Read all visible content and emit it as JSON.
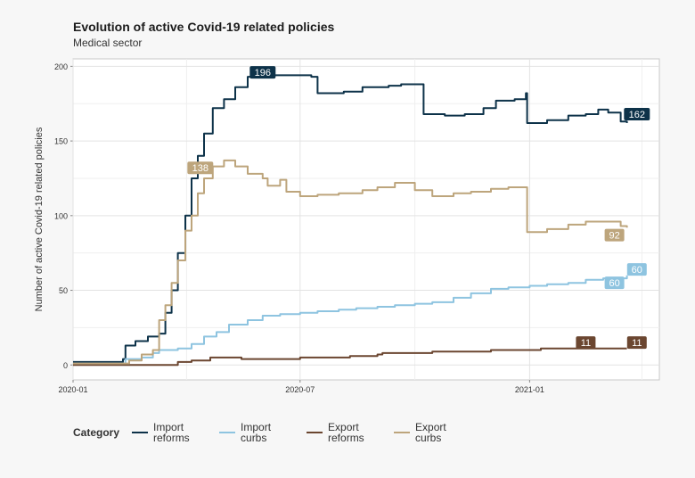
{
  "chart_data": {
    "type": "line",
    "title": "Evolution of active Covid-19 related policies",
    "subtitle": "Medical sector",
    "xlabel": "",
    "ylabel": "Number of active Covid-19 related policies",
    "x_ticks": [
      "2020-01",
      "2020-07",
      "2021-01"
    ],
    "y_ticks": [
      0,
      50,
      100,
      150,
      200
    ],
    "xlim": [
      "2020-01-01",
      "2021-04-15"
    ],
    "ylim": [
      -10,
      205
    ],
    "grid": true,
    "legend": {
      "title": "Category",
      "position": "bottom-left"
    },
    "series": [
      {
        "name": "Import\nreforms",
        "color": "#0d3249",
        "points": [
          [
            "2020-01-01",
            2
          ],
          [
            "2020-01-25",
            2
          ],
          [
            "2020-02-10",
            4
          ],
          [
            "2020-02-12",
            13
          ],
          [
            "2020-02-20",
            16
          ],
          [
            "2020-03-01",
            19
          ],
          [
            "2020-03-10",
            21
          ],
          [
            "2020-03-15",
            35
          ],
          [
            "2020-03-20",
            50
          ],
          [
            "2020-03-25",
            75
          ],
          [
            "2020-03-31",
            100
          ],
          [
            "2020-04-05",
            125
          ],
          [
            "2020-04-10",
            140
          ],
          [
            "2020-04-15",
            155
          ],
          [
            "2020-04-22",
            172
          ],
          [
            "2020-05-01",
            178
          ],
          [
            "2020-05-10",
            186
          ],
          [
            "2020-05-20",
            193
          ],
          [
            "2020-05-31",
            196
          ],
          [
            "2020-06-10",
            194
          ],
          [
            "2020-06-25",
            194
          ],
          [
            "2020-07-10",
            193
          ],
          [
            "2020-07-15",
            182
          ],
          [
            "2020-07-25",
            182
          ],
          [
            "2020-08-05",
            183
          ],
          [
            "2020-08-20",
            186
          ],
          [
            "2020-09-10",
            187
          ],
          [
            "2020-09-20",
            188
          ],
          [
            "2020-10-05",
            188
          ],
          [
            "2020-10-08",
            168
          ],
          [
            "2020-10-25",
            167
          ],
          [
            "2020-11-10",
            168
          ],
          [
            "2020-11-25",
            172
          ],
          [
            "2020-12-05",
            177
          ],
          [
            "2020-12-20",
            178
          ],
          [
            "2020-12-29",
            182
          ],
          [
            "2020-12-30",
            162
          ],
          [
            "2021-01-15",
            164
          ],
          [
            "2021-02-01",
            167
          ],
          [
            "2021-02-15",
            168
          ],
          [
            "2021-02-25",
            171
          ],
          [
            "2021-03-05",
            169
          ],
          [
            "2021-03-15",
            163
          ],
          [
            "2021-03-20",
            162
          ]
        ],
        "end_label": "162",
        "peak_label": "196"
      },
      {
        "name": "Import\ncurbs",
        "color": "#8ec4e0",
        "points": [
          [
            "2020-01-01",
            1
          ],
          [
            "2020-02-10",
            1
          ],
          [
            "2020-02-12",
            4
          ],
          [
            "2020-02-25",
            5
          ],
          [
            "2020-03-05",
            8
          ],
          [
            "2020-03-10",
            10
          ],
          [
            "2020-03-25",
            11
          ],
          [
            "2020-04-05",
            14
          ],
          [
            "2020-04-15",
            19
          ],
          [
            "2020-04-25",
            22
          ],
          [
            "2020-05-05",
            27
          ],
          [
            "2020-05-20",
            30
          ],
          [
            "2020-06-01",
            33
          ],
          [
            "2020-06-15",
            34
          ],
          [
            "2020-07-01",
            35
          ],
          [
            "2020-07-15",
            36
          ],
          [
            "2020-08-01",
            37
          ],
          [
            "2020-08-15",
            38
          ],
          [
            "2020-09-01",
            39
          ],
          [
            "2020-09-15",
            40
          ],
          [
            "2020-10-01",
            41
          ],
          [
            "2020-10-15",
            42
          ],
          [
            "2020-11-01",
            45
          ],
          [
            "2020-11-15",
            48
          ],
          [
            "2020-12-01",
            51
          ],
          [
            "2020-12-15",
            52
          ],
          [
            "2021-01-01",
            53
          ],
          [
            "2021-01-15",
            54
          ],
          [
            "2021-02-01",
            55
          ],
          [
            "2021-02-15",
            57
          ],
          [
            "2021-03-01",
            58
          ],
          [
            "2021-03-20",
            60
          ]
        ],
        "end_label": "60"
      },
      {
        "name": "Export\nreforms",
        "color": "#6b4630",
        "points": [
          [
            "2020-01-01",
            0
          ],
          [
            "2020-03-15",
            0
          ],
          [
            "2020-03-25",
            2
          ],
          [
            "2020-04-05",
            3
          ],
          [
            "2020-04-20",
            5
          ],
          [
            "2020-05-10",
            5
          ],
          [
            "2020-05-15",
            4
          ],
          [
            "2020-06-15",
            4
          ],
          [
            "2020-07-01",
            5
          ],
          [
            "2020-07-25",
            5
          ],
          [
            "2020-08-10",
            6
          ],
          [
            "2020-09-01",
            7
          ],
          [
            "2020-09-05",
            8
          ],
          [
            "2020-10-01",
            8
          ],
          [
            "2020-10-15",
            9
          ],
          [
            "2020-11-15",
            9
          ],
          [
            "2020-12-01",
            10
          ],
          [
            "2021-01-01",
            10
          ],
          [
            "2021-01-10",
            11
          ],
          [
            "2021-03-20",
            11
          ]
        ],
        "end_label": "11"
      },
      {
        "name": "Export\ncurbs",
        "color": "#bda57c",
        "points": [
          [
            "2020-01-01",
            1
          ],
          [
            "2020-02-10",
            1
          ],
          [
            "2020-02-15",
            3
          ],
          [
            "2020-02-25",
            7
          ],
          [
            "2020-03-05",
            10
          ],
          [
            "2020-03-10",
            30
          ],
          [
            "2020-03-15",
            40
          ],
          [
            "2020-03-20",
            55
          ],
          [
            "2020-03-25",
            70
          ],
          [
            "2020-03-31",
            90
          ],
          [
            "2020-04-05",
            100
          ],
          [
            "2020-04-10",
            115
          ],
          [
            "2020-04-15",
            125
          ],
          [
            "2020-04-22",
            133
          ],
          [
            "2020-05-01",
            137
          ],
          [
            "2020-05-10",
            133
          ],
          [
            "2020-05-20",
            128
          ],
          [
            "2020-06-01",
            125
          ],
          [
            "2020-06-05",
            120
          ],
          [
            "2020-06-15",
            124
          ],
          [
            "2020-06-20",
            116
          ],
          [
            "2020-07-01",
            113
          ],
          [
            "2020-07-15",
            114
          ],
          [
            "2020-08-01",
            115
          ],
          [
            "2020-08-20",
            117
          ],
          [
            "2020-09-01",
            119
          ],
          [
            "2020-09-15",
            122
          ],
          [
            "2020-10-01",
            117
          ],
          [
            "2020-10-15",
            113
          ],
          [
            "2020-11-01",
            115
          ],
          [
            "2020-11-15",
            116
          ],
          [
            "2020-12-01",
            118
          ],
          [
            "2020-12-15",
            119
          ],
          [
            "2020-12-29",
            119
          ],
          [
            "2020-12-30",
            89
          ],
          [
            "2021-01-15",
            91
          ],
          [
            "2021-02-01",
            94
          ],
          [
            "2021-02-15",
            96
          ],
          [
            "2021-03-05",
            96
          ],
          [
            "2021-03-15",
            93
          ],
          [
            "2021-03-20",
            92
          ]
        ],
        "end_label": "92",
        "peak_label": "138"
      }
    ],
    "annotations": [
      {
        "series": "Import\nreforms",
        "text": "196",
        "at": [
          "2020-06-01",
          196
        ]
      },
      {
        "series": "Import\nreforms",
        "text": "162",
        "at": [
          "2021-03-28",
          168
        ]
      },
      {
        "series": "Export\ncurbs",
        "text": "138",
        "at": [
          "2020-04-12",
          132
        ]
      },
      {
        "series": "Export\ncurbs",
        "text": "92",
        "at": [
          "2021-03-10",
          87
        ]
      },
      {
        "series": "Import\ncurbs",
        "text": "60",
        "at": [
          "2021-03-28",
          64
        ]
      },
      {
        "series": "Import\ncurbs",
        "text": "60",
        "at": [
          "2021-03-10",
          55
        ]
      },
      {
        "series": "Export\nreforms",
        "text": "11",
        "at": [
          "2021-02-15",
          15
        ]
      },
      {
        "series": "Export\nreforms",
        "text": "11",
        "at": [
          "2021-03-28",
          15
        ]
      }
    ]
  }
}
